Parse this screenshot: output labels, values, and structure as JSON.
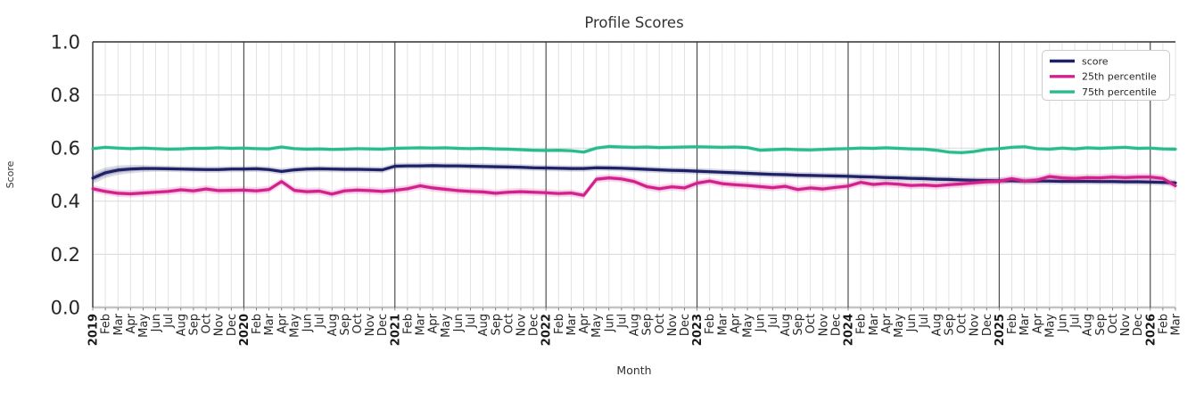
{
  "chart_data": {
    "type": "line",
    "title": "Profile Scores",
    "xlabel": "Month",
    "ylabel": "Score",
    "ylim": [
      0.0,
      1.0
    ],
    "yticks": [
      0.0,
      0.2,
      0.4,
      0.6,
      0.8,
      1.0
    ],
    "ytick_labels": [
      "0.0",
      "0.2",
      "0.4",
      "0.6",
      "0.8",
      "1.0"
    ],
    "grid": true,
    "legend_position": "upper right",
    "x_tick_labels": [
      "2019",
      "Feb",
      "Mar",
      "Apr",
      "May",
      "Jun",
      "Jul",
      "Aug",
      "Sep",
      "Oct",
      "Nov",
      "Dec",
      "2020",
      "Feb",
      "Mar",
      "Apr",
      "May",
      "Jun",
      "Jul",
      "Aug",
      "Sep",
      "Oct",
      "Nov",
      "Dec",
      "2021",
      "Feb",
      "Mar",
      "Apr",
      "May",
      "Jun",
      "Jul",
      "Aug",
      "Sep",
      "Oct",
      "Nov",
      "Dec",
      "2022",
      "Feb",
      "Mar",
      "Apr",
      "May",
      "Jun",
      "Jul",
      "Aug",
      "Sep",
      "Oct",
      "Nov",
      "Dec",
      "2023",
      "Feb",
      "Mar",
      "Apr",
      "May",
      "Jun",
      "Jul",
      "Aug",
      "Sep",
      "Oct",
      "Nov",
      "Dec",
      "2024",
      "Feb",
      "Mar",
      "Apr",
      "May",
      "Jun",
      "Jul",
      "Aug",
      "Sep",
      "Oct",
      "Nov",
      "Dec",
      "2025",
      "Feb",
      "Mar",
      "Apr",
      "May",
      "Jun",
      "Jul",
      "Aug",
      "Sep",
      "Oct",
      "Nov",
      "Dec",
      "2026",
      "Feb",
      "Mar"
    ],
    "series": [
      {
        "name": "score",
        "color": "#1e2166",
        "band_halfwidth": 0.012,
        "start_band_halfwidth": 0.022,
        "values": [
          0.487,
          0.507,
          0.517,
          0.521,
          0.523,
          0.523,
          0.522,
          0.521,
          0.52,
          0.519,
          0.519,
          0.521,
          0.521,
          0.522,
          0.519,
          0.512,
          0.518,
          0.521,
          0.522,
          0.521,
          0.52,
          0.52,
          0.519,
          0.518,
          0.532,
          0.533,
          0.533,
          0.534,
          0.533,
          0.533,
          0.532,
          0.531,
          0.53,
          0.529,
          0.528,
          0.526,
          0.525,
          0.524,
          0.523,
          0.523,
          0.526,
          0.525,
          0.524,
          0.522,
          0.52,
          0.518,
          0.516,
          0.515,
          0.513,
          0.511,
          0.509,
          0.507,
          0.505,
          0.503,
          0.501,
          0.5,
          0.498,
          0.497,
          0.496,
          0.495,
          0.494,
          0.492,
          0.491,
          0.489,
          0.488,
          0.486,
          0.485,
          0.483,
          0.482,
          0.48,
          0.479,
          0.478,
          0.477,
          0.477,
          0.476,
          0.476,
          0.476,
          0.475,
          0.475,
          0.475,
          0.474,
          0.474,
          0.473,
          0.473,
          0.472,
          0.471,
          0.469
        ]
      },
      {
        "name": "25th percentile",
        "color": "#d2218c",
        "band_halfwidth": 0.014,
        "values": [
          0.447,
          0.437,
          0.43,
          0.428,
          0.431,
          0.434,
          0.437,
          0.443,
          0.439,
          0.446,
          0.44,
          0.441,
          0.442,
          0.439,
          0.444,
          0.474,
          0.441,
          0.436,
          0.438,
          0.427,
          0.439,
          0.442,
          0.44,
          0.437,
          0.441,
          0.447,
          0.458,
          0.45,
          0.445,
          0.44,
          0.437,
          0.435,
          0.43,
          0.434,
          0.436,
          0.434,
          0.432,
          0.429,
          0.431,
          0.422,
          0.483,
          0.488,
          0.484,
          0.474,
          0.455,
          0.447,
          0.454,
          0.45,
          0.468,
          0.476,
          0.466,
          0.462,
          0.459,
          0.455,
          0.451,
          0.456,
          0.444,
          0.45,
          0.446,
          0.452,
          0.457,
          0.471,
          0.463,
          0.467,
          0.464,
          0.459,
          0.461,
          0.458,
          0.462,
          0.465,
          0.469,
          0.473,
          0.475,
          0.485,
          0.476,
          0.48,
          0.493,
          0.488,
          0.486,
          0.489,
          0.488,
          0.491,
          0.489,
          0.491,
          0.491,
          0.486,
          0.458
        ]
      },
      {
        "name": "75th percentile",
        "color": "#27bb8d",
        "band_halfwidth": 0.008,
        "values": [
          0.598,
          0.603,
          0.6,
          0.598,
          0.6,
          0.598,
          0.596,
          0.597,
          0.599,
          0.599,
          0.601,
          0.599,
          0.6,
          0.598,
          0.597,
          0.604,
          0.598,
          0.596,
          0.597,
          0.595,
          0.596,
          0.598,
          0.597,
          0.596,
          0.599,
          0.6,
          0.601,
          0.6,
          0.601,
          0.599,
          0.598,
          0.599,
          0.597,
          0.596,
          0.594,
          0.592,
          0.591,
          0.592,
          0.59,
          0.585,
          0.6,
          0.606,
          0.604,
          0.603,
          0.604,
          0.602,
          0.603,
          0.604,
          0.605,
          0.604,
          0.603,
          0.604,
          0.602,
          0.592,
          0.594,
          0.596,
          0.594,
          0.593,
          0.595,
          0.597,
          0.598,
          0.6,
          0.599,
          0.601,
          0.599,
          0.597,
          0.596,
          0.592,
          0.585,
          0.583,
          0.587,
          0.595,
          0.598,
          0.603,
          0.605,
          0.598,
          0.596,
          0.6,
          0.597,
          0.601,
          0.599,
          0.601,
          0.603,
          0.599,
          0.6,
          0.597,
          0.596
        ]
      }
    ],
    "colors": {
      "grid_minor": "#e0e0e0",
      "grid_major_year": "#3f3f3f",
      "grid_horizontal": "#d8d8d8",
      "zero_line": "#c4c4c4",
      "spine": "#303030",
      "legend_border": "#cccccc",
      "text": "#262626"
    },
    "legend": {
      "entries": [
        "score",
        "25th percentile",
        "75th percentile"
      ]
    }
  }
}
